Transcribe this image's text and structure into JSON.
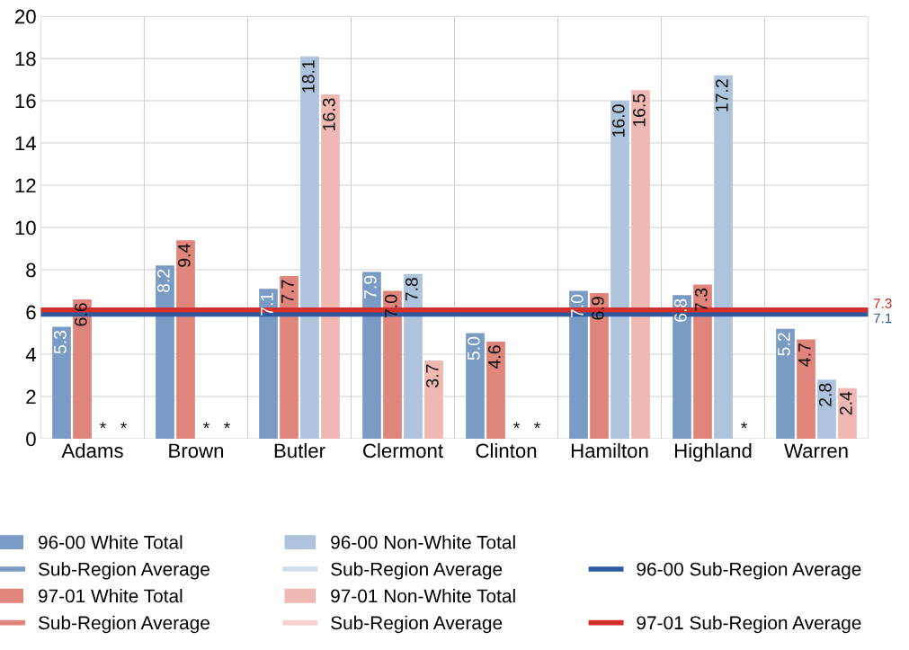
{
  "chart_data": {
    "type": "bar",
    "categories": [
      "Adams",
      "Brown",
      "Butler",
      "Clermont",
      "Clinton",
      "Hamilton",
      "Highland",
      "Warren"
    ],
    "series": [
      {
        "name": "96-00 White Total",
        "color": "#7a9cc4",
        "values": [
          5.3,
          8.2,
          7.1,
          7.9,
          5.0,
          7.0,
          6.8,
          5.2
        ],
        "value_labels": [
          "5.3",
          "8.2",
          "7.1",
          "7.9",
          "5.0",
          "7.0",
          "6.8",
          "5.2"
        ]
      },
      {
        "name": "97-01 White Total",
        "color": "#e0857b",
        "values": [
          6.6,
          9.4,
          7.7,
          7.0,
          4.6,
          6.9,
          7.3,
          4.7
        ],
        "value_labels": [
          "6.6",
          "9.4",
          "7.7",
          "7.0",
          "4.6",
          "6.9",
          "7.3",
          "4.7"
        ]
      },
      {
        "name": "96-00 Non-White Total",
        "color": "#aec4dc",
        "values": [
          null,
          null,
          18.1,
          7.8,
          null,
          16.0,
          17.2,
          2.8
        ],
        "value_labels": [
          "*",
          "*",
          "18.1",
          "7.8",
          "*",
          "16.0",
          "17.2",
          "2.8"
        ]
      },
      {
        "name": "97-01 Non-White Total",
        "color": "#f0b8b2",
        "values": [
          null,
          null,
          16.3,
          3.7,
          null,
          16.5,
          null,
          2.4
        ],
        "value_labels": [
          "*",
          "*",
          "16.3",
          "3.7",
          "*",
          "16.5",
          "*",
          "2.4"
        ]
      },
      {
        "type": "line",
        "name": "Sub-Region Average",
        "color": "#7a9cc4",
        "values": [
          null,
          null,
          null,
          null,
          null,
          null,
          null,
          null
        ]
      },
      {
        "type": "line",
        "name": "Sub-Region Average",
        "color": "#e0857b",
        "values": [
          null,
          null,
          null,
          null,
          null,
          null,
          null,
          null
        ]
      },
      {
        "type": "line",
        "name": "Sub-Region Average",
        "color": "#d3dde9",
        "values": [
          null,
          null,
          null,
          null,
          null,
          null,
          null,
          null
        ]
      },
      {
        "type": "line",
        "name": "Sub-Region Average",
        "color": "#f6d3cf",
        "values": [
          null,
          null,
          null,
          null,
          null,
          null,
          null,
          null
        ]
      }
    ],
    "ref_lines": [
      {
        "axis": "y",
        "value": 5.9,
        "label": "96-00 Sub-Region Average",
        "color": "#2c5a9e"
      },
      {
        "axis": "y",
        "value": 6.1,
        "label": "97-01 Sub-Region Average",
        "color": "#d2302a"
      }
    ],
    "annotations": [
      "7.1",
      "7.3"
    ],
    "ylim": [
      0,
      20
    ],
    "yticks": [
      0,
      2,
      4,
      6,
      8,
      10,
      12,
      14,
      16,
      18,
      20
    ],
    "grid": true,
    "legend": "bottom"
  }
}
